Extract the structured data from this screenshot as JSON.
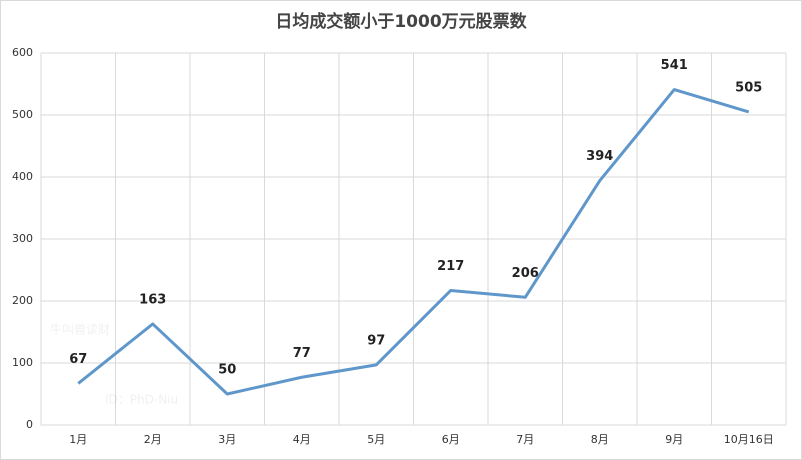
{
  "chart_data": {
    "type": "line",
    "title": "日均成交额小于1000万元股票数",
    "categories": [
      "1月",
      "2月",
      "3月",
      "4月",
      "5月",
      "6月",
      "7月",
      "8月",
      "9月",
      "10月16日"
    ],
    "values": [
      67,
      163,
      50,
      77,
      97,
      217,
      206,
      394,
      541,
      505
    ],
    "color": "#5f97cb",
    "ylim": [
      0,
      600
    ],
    "yticks": [
      0,
      100,
      200,
      300,
      400,
      500,
      600
    ],
    "grid": true,
    "watermark": [
      "牛叫兽读财",
      "ID：PhD-Niu"
    ]
  }
}
